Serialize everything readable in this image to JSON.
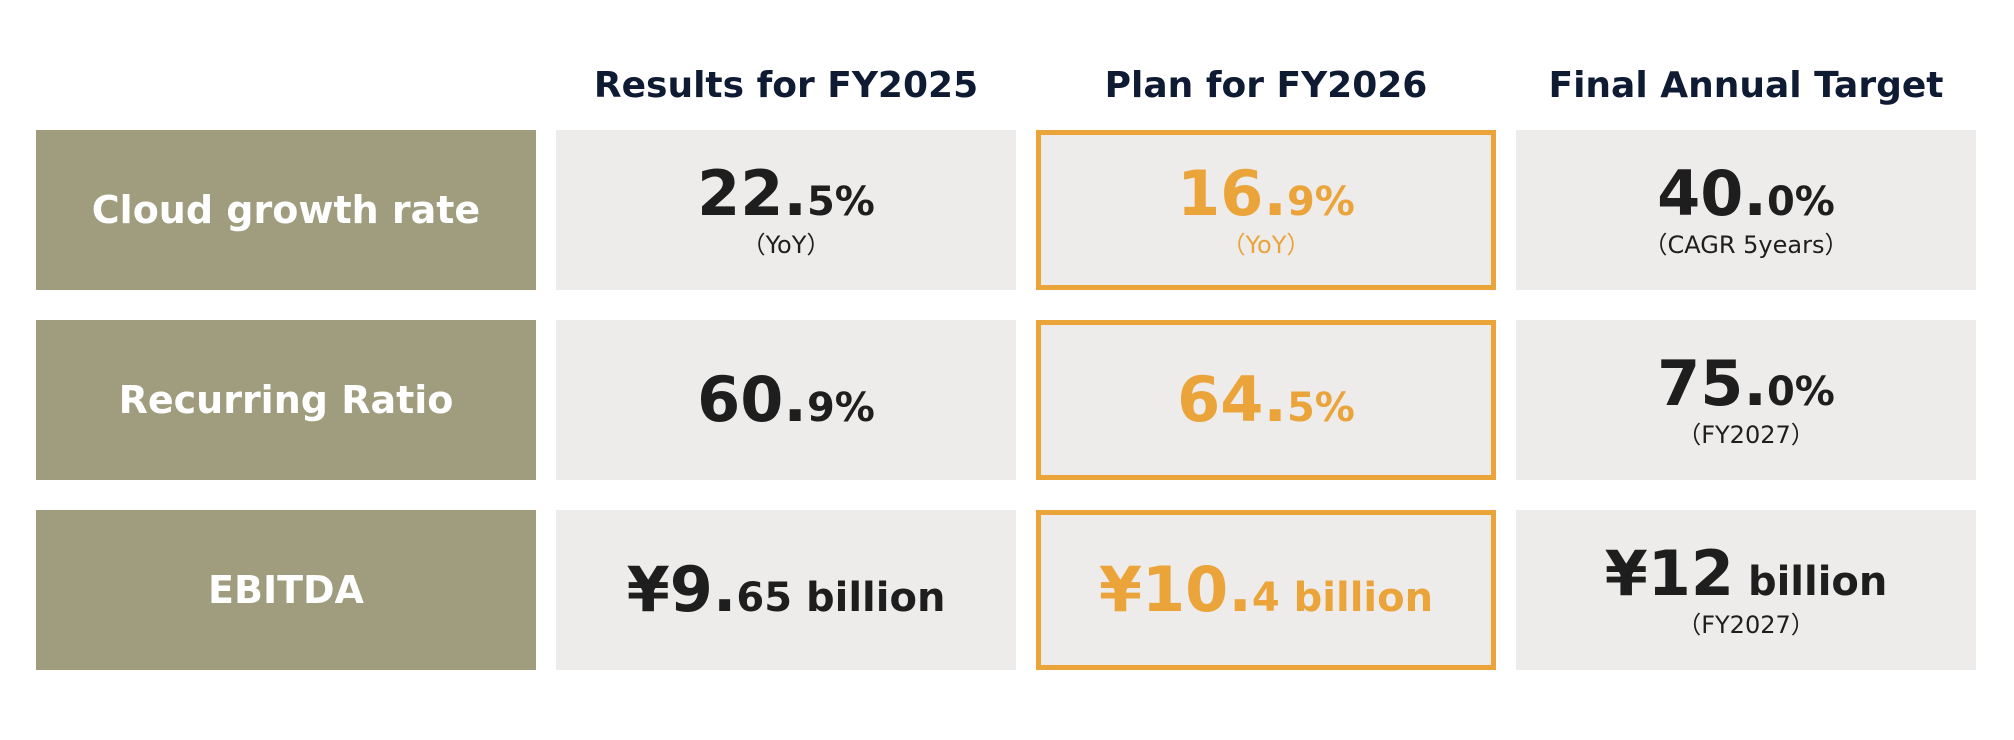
{
  "header": {
    "col1": "Results for FY2025",
    "col2": "Plan for FY2026",
    "col3": "Final Annual Target"
  },
  "colors": {
    "label_bg": "#a09d7e",
    "cell_bg": "#edecea",
    "plan_accent": "#eaa43a",
    "header_text": "#0f1a33"
  },
  "rows": [
    {
      "label": "Cloud growth rate",
      "results": {
        "int": "22.",
        "dec": "5%",
        "note": "（YoY）"
      },
      "plan": {
        "int": "16.",
        "dec": "9%",
        "note": "（YoY）"
      },
      "target": {
        "int": "40.",
        "dec": "0%",
        "note": "（CAGR 5years）"
      }
    },
    {
      "label": "Recurring Ratio",
      "results": {
        "int": "60.",
        "dec": "9%"
      },
      "plan": {
        "int": "64.",
        "dec": "5%"
      },
      "target": {
        "int": "75.",
        "dec": "0%",
        "note": "（FY2027）"
      }
    },
    {
      "label": "EBITDA",
      "results": {
        "int": "¥9.",
        "dec": "65 billion"
      },
      "plan": {
        "int": "¥10.",
        "dec": "4 billion"
      },
      "target": {
        "int": "¥12",
        "dec": " billion",
        "note": "（FY2027）"
      }
    }
  ]
}
